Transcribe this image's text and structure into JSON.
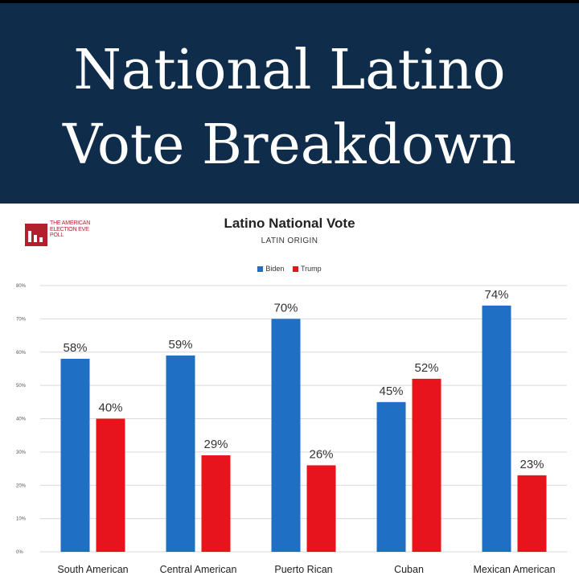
{
  "banner": {
    "line1": "National Latino",
    "line2": "Vote Breakdown"
  },
  "logo": {
    "lines": [
      "THE AMERICAN",
      "ELECTION EVE",
      "POLL"
    ]
  },
  "colors": {
    "banner": "#0f2d4a",
    "biden": "#1f6fc4",
    "trump": "#e8141b",
    "logo": "#b2202e"
  },
  "chart_data": {
    "type": "bar",
    "title": "Latino National Vote",
    "subtitle": "LATIN ORIGIN",
    "categories": [
      "South American",
      "Central American",
      "Puerto Rican",
      "Cuban",
      "Mexican American"
    ],
    "series": [
      {
        "name": "Biden",
        "color": "#1f6fc4",
        "values": [
          58,
          59,
          70,
          45,
          74
        ],
        "labels": [
          "58%",
          "59%",
          "70%",
          "45%",
          "74%"
        ]
      },
      {
        "name": "Trump",
        "color": "#e8141b",
        "values": [
          40,
          29,
          26,
          52,
          23
        ],
        "labels": [
          "40%",
          "29%",
          "26%",
          "52%",
          "23%"
        ]
      }
    ],
    "ylim": [
      0,
      80
    ],
    "yticks": [
      "0%",
      "10%",
      "20%",
      "30%",
      "40%",
      "50%",
      "60%",
      "70%",
      "80%"
    ],
    "grid": true,
    "legend_position": "top"
  }
}
